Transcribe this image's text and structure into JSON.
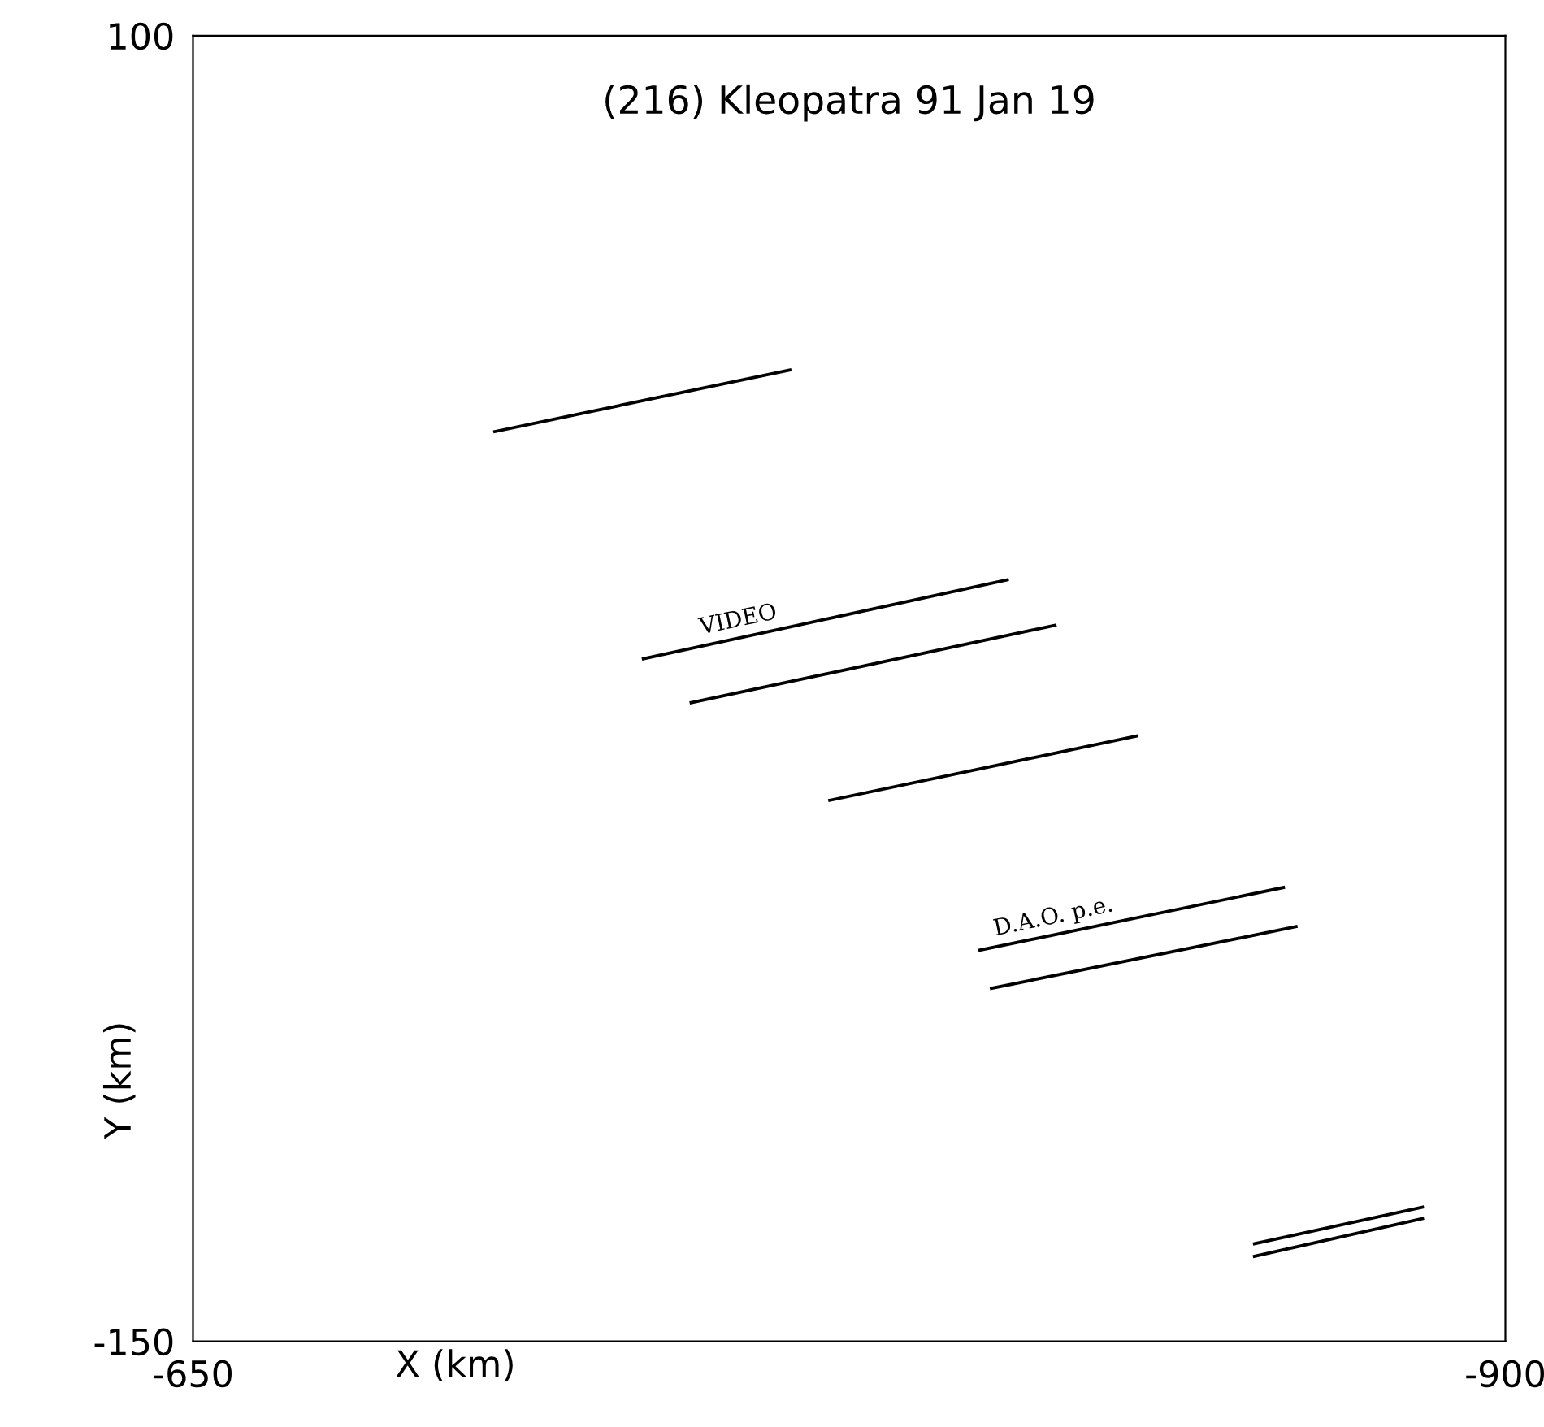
{
  "chart_data": {
    "type": "line",
    "title": "(216) Kleopatra 91 Jan 19",
    "xlabel": "X (km)",
    "ylabel": "Y (km)",
    "xlim": [
      -650,
      -900
    ],
    "ylim": [
      -150,
      100
    ],
    "xticks": [
      -650,
      -900
    ],
    "yticks": [
      -150,
      100
    ],
    "grid": false,
    "legend": false,
    "marker": "none",
    "line_style": "solid",
    "series": [
      {
        "color": "#000000",
        "x": [
          -707.5,
          -763.7
        ],
        "values": [
          24.2,
          36.0
        ]
      },
      {
        "color": "#000000",
        "x": [
          -735.8,
          -805.1
        ],
        "values": [
          -19.3,
          -4.2
        ]
      },
      {
        "color": "#000000",
        "x": [
          -744.9,
          -814.2
        ],
        "values": [
          -27.7,
          -12.9
        ]
      },
      {
        "color": "#000000",
        "x": [
          -771.3,
          -829.7
        ],
        "values": [
          -46.4,
          -34.1
        ]
      },
      {
        "color": "#000000",
        "x": [
          -799.9,
          -857.7
        ],
        "values": [
          -75.1,
          -63.1
        ]
      },
      {
        "color": "#000000",
        "x": [
          -802.1,
          -860.1
        ],
        "values": [
          -82.4,
          -70.6
        ]
      },
      {
        "color": "#000000",
        "x": [
          -852.2,
          -884.2
        ],
        "values": [
          -131.3,
          -124.3
        ]
      },
      {
        "color": "#000000",
        "x": [
          -852.2,
          -884.2
        ],
        "values": [
          -133.7,
          -126.5
        ]
      }
    ],
    "annotations": [
      {
        "text": "VIDEO",
        "x": -747,
        "y": -16.8
      },
      {
        "text": "D.A.O. p.e.",
        "x": -803,
        "y": -74.5
      }
    ]
  }
}
